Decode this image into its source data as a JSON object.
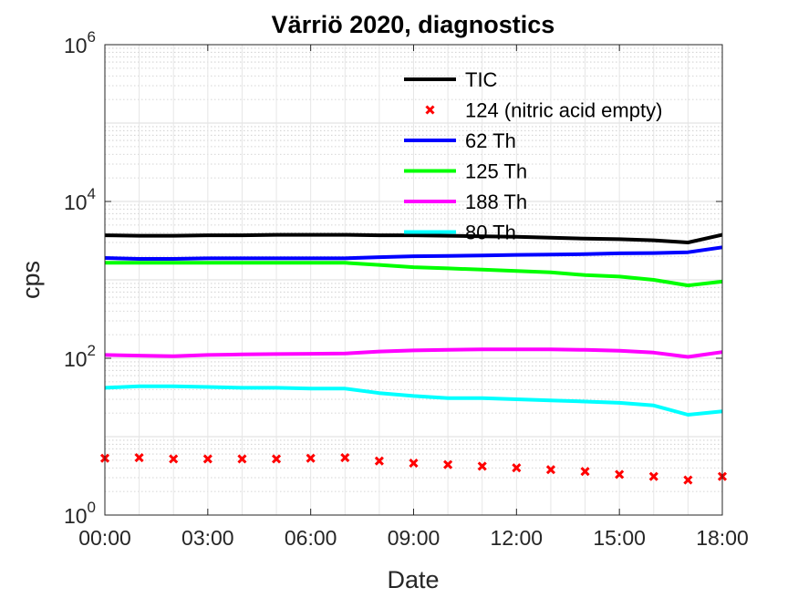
{
  "chart_data": {
    "type": "line",
    "title": "Värriö 2020, diagnostics",
    "xlabel": "Date",
    "ylabel": "cps",
    "yscale": "log",
    "ylim": [
      1,
      1000000
    ],
    "y_ticks": [
      {
        "value": 1,
        "base": "10",
        "exp": "0"
      },
      {
        "value": 100,
        "base": "10",
        "exp": "2"
      },
      {
        "value": 10000,
        "base": "10",
        "exp": "4"
      },
      {
        "value": 1000000,
        "base": "10",
        "exp": "6"
      }
    ],
    "xlim": [
      "00:00",
      "18:00"
    ],
    "x_ticks": [
      "00:00",
      "03:00",
      "06:00",
      "09:00",
      "12:00",
      "15:00",
      "18:00"
    ],
    "x": [
      "00:00",
      "01:00",
      "02:00",
      "03:00",
      "04:00",
      "05:00",
      "06:00",
      "07:00",
      "08:00",
      "09:00",
      "10:00",
      "11:00",
      "12:00",
      "13:00",
      "14:00",
      "15:00",
      "16:00",
      "17:00",
      "18:00"
    ],
    "grid": true,
    "legend_position": "top-right",
    "series": [
      {
        "name": "TIC",
        "color": "#000000",
        "style": "line",
        "values": [
          3700,
          3650,
          3650,
          3700,
          3700,
          3750,
          3750,
          3750,
          3700,
          3700,
          3650,
          3600,
          3550,
          3450,
          3350,
          3300,
          3200,
          3000,
          3750
        ]
      },
      {
        "name": "124 (nitric acid empty)",
        "color": "#ff0000",
        "style": "marker-x",
        "values": [
          5.3,
          5.4,
          5.2,
          5.2,
          5.2,
          5.2,
          5.3,
          5.4,
          4.9,
          4.6,
          4.4,
          4.2,
          4.0,
          3.8,
          3.6,
          3.3,
          3.1,
          2.8,
          3.1
        ]
      },
      {
        "name": "62 Th",
        "color": "#0000ff",
        "style": "line",
        "values": [
          1900,
          1850,
          1850,
          1880,
          1880,
          1880,
          1880,
          1880,
          1950,
          2000,
          2020,
          2050,
          2080,
          2100,
          2130,
          2180,
          2200,
          2250,
          2600
        ]
      },
      {
        "name": "125 Th",
        "color": "#00ff00",
        "style": "line",
        "values": [
          1650,
          1650,
          1650,
          1650,
          1650,
          1650,
          1650,
          1650,
          1550,
          1450,
          1400,
          1350,
          1300,
          1250,
          1150,
          1100,
          1000,
          850,
          950
        ]
      },
      {
        "name": "188 Th",
        "color": "#ff00ff",
        "style": "line",
        "values": [
          110,
          108,
          106,
          110,
          112,
          113,
          114,
          115,
          122,
          126,
          128,
          130,
          130,
          130,
          128,
          125,
          118,
          104,
          120
        ]
      },
      {
        "name": "80 Th",
        "color": "#00ffff",
        "style": "line",
        "values": [
          42,
          44,
          44,
          43,
          42,
          42,
          41,
          41,
          36,
          33,
          31,
          31,
          30,
          29,
          28,
          27,
          25,
          19,
          21
        ]
      }
    ]
  }
}
